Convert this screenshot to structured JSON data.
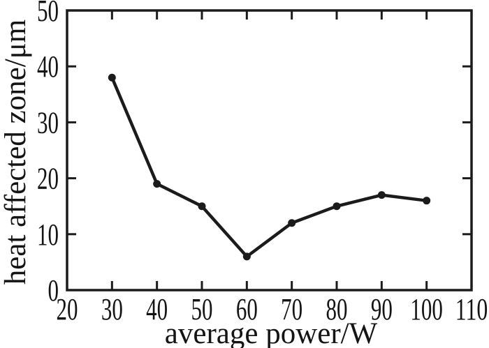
{
  "chart_data": {
    "type": "line",
    "title": "",
    "xlabel": "average power/W",
    "ylabel": "heat affected zone/μm",
    "series": [
      {
        "name": "heat affected zone",
        "x": [
          30,
          40,
          50,
          60,
          70,
          80,
          90,
          100
        ],
        "values": [
          38,
          19,
          15,
          6,
          12,
          15,
          17,
          16
        ]
      }
    ],
    "xlim": [
      20,
      110
    ],
    "ylim": [
      0,
      50
    ],
    "xticks": [
      20,
      30,
      40,
      50,
      60,
      70,
      80,
      90,
      100,
      110
    ],
    "yticks": [
      0,
      10,
      20,
      30,
      40,
      50
    ],
    "grid": false,
    "legend_position": "none",
    "marker": "filled-circle",
    "line_style": "solid",
    "colors": {
      "line": "#1b1b1b",
      "marker": "#1b1b1b",
      "frame": "#1b1b1b",
      "text": "#141414",
      "background": "#ffffff"
    }
  }
}
